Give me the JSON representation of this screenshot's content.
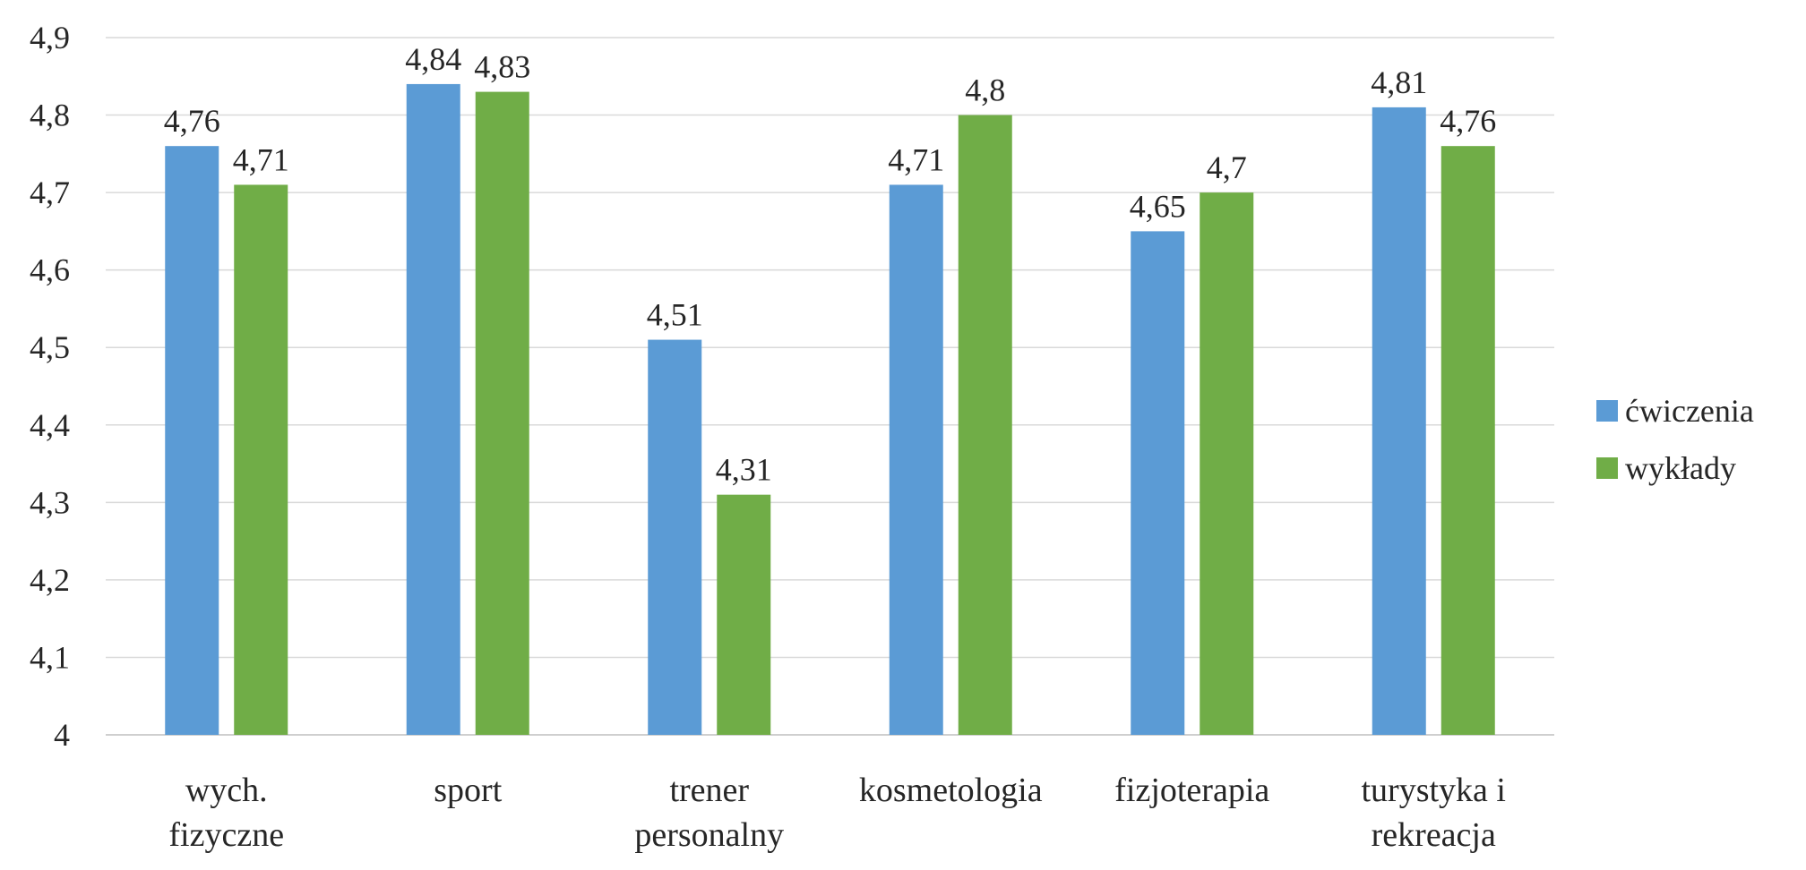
{
  "chart_data": {
    "type": "bar",
    "categories": [
      [
        "wych.",
        "fizyczne"
      ],
      [
        "sport"
      ],
      [
        "trener",
        "personalny"
      ],
      [
        "kosmetologia"
      ],
      [
        "fizjoterapia"
      ],
      [
        "turystyka i",
        "rekreacja"
      ]
    ],
    "series": [
      {
        "name": "ćwiczenia",
        "color": "#5B9BD5",
        "values": [
          4.76,
          4.84,
          4.51,
          4.71,
          4.65,
          4.81
        ],
        "labels": [
          "4,76",
          "4,84",
          "4,51",
          "4,71",
          "4,65",
          "4,81"
        ]
      },
      {
        "name": "wykłady",
        "color": "#70AD47",
        "values": [
          4.71,
          4.83,
          4.31,
          4.8,
          4.7,
          4.76
        ],
        "labels": [
          "4,71",
          "4,83",
          "4,31",
          "4,8",
          "4,7",
          "4,76"
        ]
      }
    ],
    "yticks": [
      4.0,
      4.1,
      4.2,
      4.3,
      4.4,
      4.5,
      4.6,
      4.7,
      4.8,
      4.9
    ],
    "ytick_labels": [
      "4",
      "4,1",
      "4,2",
      "4,3",
      "4,4",
      "4,5",
      "4,6",
      "4,7",
      "4,8",
      "4,9"
    ],
    "ylim": [
      4.0,
      4.9
    ],
    "grid": true,
    "legend_position": "right",
    "title": "",
    "xlabel": "",
    "ylabel": ""
  }
}
